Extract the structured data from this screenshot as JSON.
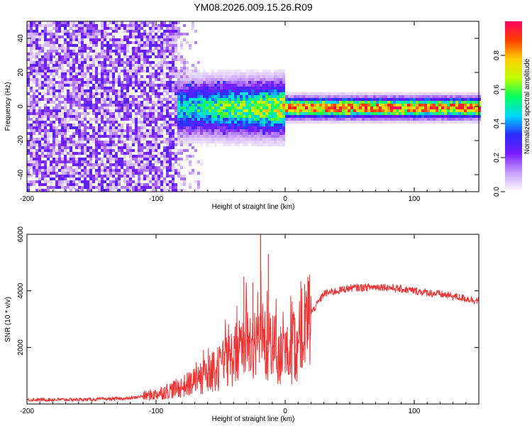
{
  "title": "YM08.2026.009.15.26.R09",
  "chart_data": [
    {
      "type": "heatmap",
      "xlabel": "Height of straight line (km)",
      "ylabel": "Frequency (Hz)",
      "xlim": [
        -200,
        150
      ],
      "ylim": [
        -50,
        50
      ],
      "x_ticks": [
        -200,
        -100,
        0,
        100
      ],
      "y_ticks": [
        -40,
        -20,
        0,
        20,
        40
      ],
      "colorbar": {
        "label": "Normalized spectral amplitude",
        "range": [
          0,
          1
        ],
        "ticks": [
          0.0,
          0.2,
          0.4,
          0.6,
          0.8
        ],
        "colors": [
          "#ffffff",
          "#c8a0ff",
          "#7a1cff",
          "#2a2aff",
          "#00d8ff",
          "#00ff60",
          "#c0ff00",
          "#ffd000",
          "#ff4000",
          "#ff0060"
        ]
      },
      "features": {
        "noise_region_x": [
          -200,
          -85
        ],
        "noise_sparse_x": [
          -85,
          -65
        ],
        "signal_band_center_hz": 0,
        "signal_start_x": -85,
        "signal_strong_from_x": 0
      }
    },
    {
      "type": "line",
      "xlabel": "Height of straight line (km)",
      "ylabel": "SNR (10 * v/v)",
      "xlim": [
        -200,
        150
      ],
      "ylim": [
        0,
        6000
      ],
      "x_ticks": [
        -200,
        -100,
        0,
        100
      ],
      "y_ticks": [
        2000,
        4000,
        6000
      ],
      "color": "#ee3333",
      "series": [
        {
          "name": "SNR",
          "x": [
            -200,
            -150,
            -120,
            -100,
            -80,
            -60,
            -50,
            -40,
            -30,
            -20,
            -10,
            0,
            10,
            20,
            30,
            50,
            75,
            100,
            125,
            150
          ],
          "y": [
            150,
            160,
            200,
            350,
            600,
            1000,
            1300,
            1700,
            2100,
            2300,
            2000,
            1600,
            2200,
            3200,
            3900,
            4100,
            4150,
            4000,
            3850,
            3650
          ]
        }
      ],
      "spikes": [
        {
          "x": -32,
          "y": 4500
        },
        {
          "x": -25,
          "y": 4300
        },
        {
          "x": -19,
          "y": 6000
        },
        {
          "x": -13,
          "y": 5300
        }
      ]
    }
  ]
}
